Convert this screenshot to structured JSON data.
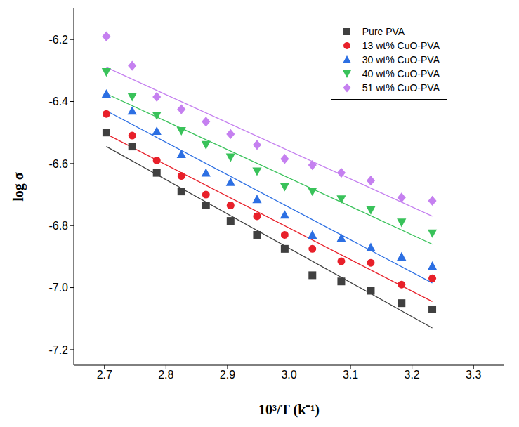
{
  "chart_data": {
    "type": "scatter",
    "x_label": "10³/T (k⁻¹)",
    "y_label": "log σ",
    "x": [
      2.703,
      2.745,
      2.785,
      2.825,
      2.865,
      2.905,
      2.948,
      2.993,
      3.038,
      3.085,
      3.133,
      3.183,
      3.233
    ],
    "xlim": [
      2.65,
      3.35
    ],
    "xticks": [
      2.7,
      2.8,
      2.9,
      {
        "value": 3,
        "label": "3.0"
      },
      3.1,
      3.2,
      3.3
    ],
    "ylim": [
      -7.25,
      -6.1
    ],
    "yticks": [
      -7.2,
      {
        "value": -7,
        "label": "-7.0"
      },
      -6.8,
      -6.6,
      -6.4,
      -6.2
    ],
    "legend": "upper right",
    "grid": false,
    "series": [
      {
        "name": "Pure PVA",
        "color": "#404040",
        "marker": "square",
        "values": [
          -6.5,
          -6.545,
          -6.63,
          -6.69,
          -6.735,
          -6.785,
          -6.83,
          -6.875,
          -6.96,
          -6.98,
          -7.01,
          -7.05,
          -7.07
        ],
        "fit": [
          -6.545,
          -7.13
        ]
      },
      {
        "name": "13 wt% CuO-PVA",
        "color": "#e8202a",
        "marker": "circle",
        "values": [
          -6.44,
          -6.51,
          -6.59,
          -6.64,
          -6.7,
          -6.735,
          -6.77,
          -6.83,
          -6.875,
          -6.915,
          -6.92,
          -6.99,
          -6.97
        ],
        "fit": [
          -6.505,
          -7.045
        ]
      },
      {
        "name": "30 wt% CuO-PVA",
        "color": "#2c6fe3",
        "marker": "triangle",
        "values": [
          -6.375,
          -6.43,
          -6.495,
          -6.57,
          -6.63,
          -6.66,
          -6.715,
          -6.765,
          -6.83,
          -6.84,
          -6.87,
          -6.9,
          -6.93
        ],
        "fit": [
          -6.43,
          -6.985
        ]
      },
      {
        "name": "40 wt% CuO-PVA",
        "color": "#39c25a",
        "marker": "triangle-down",
        "values": [
          -6.305,
          -6.385,
          -6.445,
          -6.495,
          -6.54,
          -6.58,
          -6.625,
          -6.675,
          -6.69,
          -6.715,
          -6.75,
          -6.79,
          -6.825
        ],
        "fit": [
          -6.375,
          -6.86
        ]
      },
      {
        "name": "51 wt% CuO-PVA",
        "color": "#c580f0",
        "marker": "diamond",
        "values": [
          -6.19,
          -6.285,
          -6.385,
          -6.425,
          -6.465,
          -6.505,
          -6.54,
          -6.585,
          -6.605,
          -6.63,
          -6.655,
          -6.71,
          -6.72
        ],
        "fit": [
          -6.29,
          -6.77
        ]
      }
    ]
  }
}
